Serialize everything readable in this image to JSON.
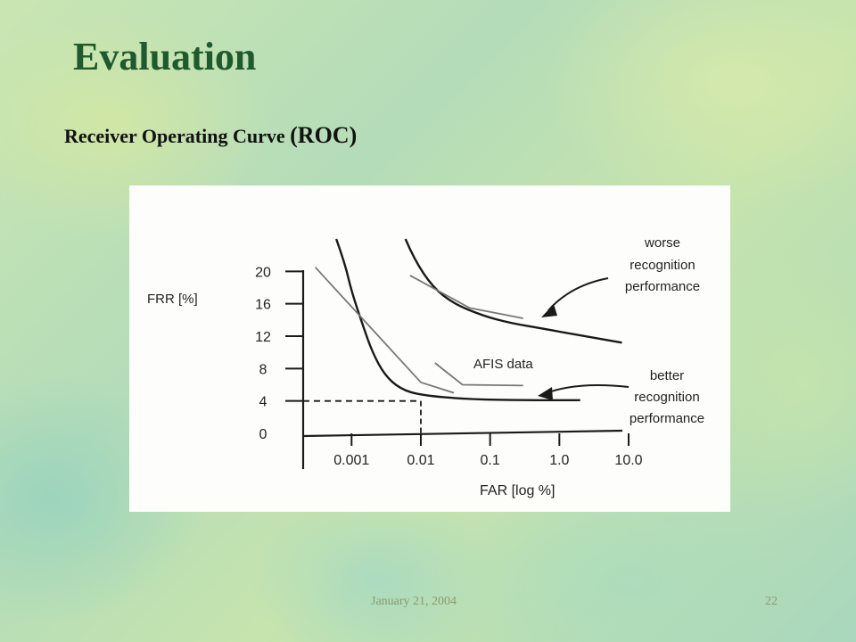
{
  "slide": {
    "title": "Evaluation",
    "subtitle_main": "Receiver Operating Curve ",
    "subtitle_abbr": "(ROC)",
    "footer_date": "January 21, 2004",
    "page_number": "22"
  },
  "colors": {
    "title": "#1f5a2e",
    "curve": "#1a1a1a",
    "afis": "#777777"
  },
  "chart_data": {
    "type": "line",
    "xlabel": "FAR [log %]",
    "ylabel": "FRR [%]",
    "x_scale": "log",
    "x_ticks": [
      "0.001",
      "0.01",
      "0.1",
      "1.0",
      "10.0"
    ],
    "x_tick_values": [
      0.001,
      0.01,
      0.1,
      1.0,
      10.0
    ],
    "y_ticks": [
      "0",
      "4",
      "8",
      "12",
      "16",
      "20"
    ],
    "y_tick_values": [
      0,
      4,
      8,
      12,
      16,
      20
    ],
    "xlim": [
      0.0002,
      10
    ],
    "ylim": [
      0,
      24
    ],
    "series": [
      {
        "style": "curve",
        "x": [
          0.0006,
          0.0008,
          0.001,
          0.0015,
          0.002,
          0.003,
          0.005,
          0.01,
          0.05,
          0.3,
          2.0
        ],
        "y": [
          24,
          21,
          17.5,
          13,
          10,
          7.2,
          5.5,
          4.7,
          4.2,
          4.1,
          4.1
        ]
      },
      {
        "style": "curve",
        "x": [
          0.006,
          0.008,
          0.015,
          0.03,
          0.08,
          0.2,
          0.6,
          2.0,
          8.0
        ],
        "y": [
          24,
          21.5,
          18,
          16,
          14.5,
          13.6,
          12.9,
          12.1,
          11.2
        ]
      },
      {
        "style": "afis",
        "x": [
          0.0003,
          0.01,
          0.03
        ],
        "y": [
          20.5,
          6.3,
          5.0
        ]
      },
      {
        "style": "afis",
        "x": [
          0.007,
          0.05,
          0.3
        ],
        "y": [
          19.5,
          15.5,
          14.2
        ]
      },
      {
        "style": "afis",
        "x": [
          0.016,
          0.04,
          0.3
        ],
        "y": [
          8.7,
          6.0,
          5.9
        ]
      }
    ],
    "reference": {
      "x": 0.01,
      "y": 4.0
    },
    "annotations": {
      "worse": [
        "worse",
        "recognition",
        "performance"
      ],
      "afis": "AFIS data",
      "better": [
        "better",
        "recognition",
        "performance"
      ]
    }
  }
}
